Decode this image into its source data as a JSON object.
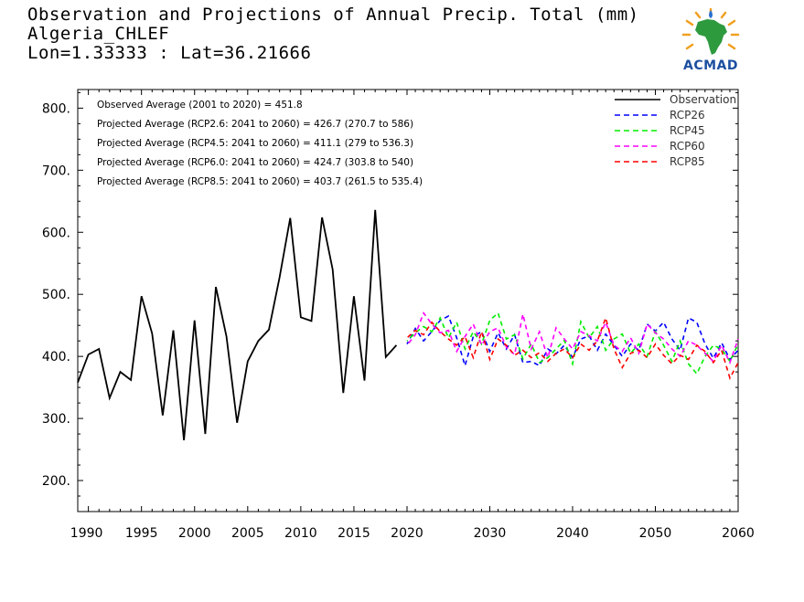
{
  "header": {
    "line1": "Observation and Projections of Annual Precip. Total (mm)",
    "line2": "Algeria_CHLEF",
    "line3": "Lon=1.33333 : Lat=36.21666"
  },
  "logo": {
    "text": "ACMAD",
    "colors": {
      "africa": "#2e9a3e",
      "rays": "#f0a020",
      "text": "#1c4fa0",
      "drop": "#2a6fd0"
    }
  },
  "annotations": [
    "Observed Average (2001 to 2020) = 451.8",
    "Projected Average (RCP2.6: 2041 to 2060) = 426.7 (270.7 to 586)",
    "Projected Average (RCP4.5: 2041 to 2060) = 411.1 (279 to 536.3)",
    "Projected Average (RCP6.0: 2041 to 2060) = 424.7 (303.8 to 540)",
    "Projected Average (RCP8.5: 2041 to 2060) = 403.7 (261.5 to 535.4)"
  ],
  "chart_data": {
    "type": "line",
    "title": "Observation and Projections of Annual Precip. Total (mm)",
    "xlim": [
      1990,
      2060
    ],
    "ylim": [
      150,
      830
    ],
    "x_tick_labels": [
      "1990",
      "1995",
      "2000",
      "2005",
      "2010",
      "2015",
      "2020",
      "2030",
      "2040",
      "2050",
      "2060"
    ],
    "y_tick_labels": [
      "200.",
      "300.",
      "400.",
      "500.",
      "600.",
      "700.",
      "800."
    ],
    "legend_position": "top-right",
    "series": [
      {
        "name": "Observation",
        "color": "#000000",
        "style": "solid",
        "x": [
          1989,
          1990,
          1991,
          1992,
          1993,
          1994,
          1995,
          1996,
          1997,
          1998,
          1999,
          2000,
          2001,
          2002,
          2003,
          2004,
          2005,
          2006,
          2007,
          2008,
          2009,
          2010,
          2011,
          2012,
          2013,
          2014,
          2015,
          2016,
          2017,
          2018,
          2019
        ],
        "values": [
          358,
          403,
          412,
          333,
          375,
          362,
          497,
          437,
          305,
          442,
          265,
          458,
          275,
          512,
          432,
          293,
          392,
          425,
          443,
          527,
          623,
          463,
          457,
          624,
          540,
          341,
          497,
          361,
          636,
          399,
          418
        ]
      },
      {
        "name": "RCP26",
        "color": "#0000ff",
        "style": "dashed",
        "x": [
          2020,
          2021,
          2022,
          2023,
          2024,
          2025,
          2026,
          2027,
          2028,
          2029,
          2030,
          2031,
          2032,
          2033,
          2034,
          2035,
          2036,
          2037,
          2038,
          2039,
          2040,
          2041,
          2042,
          2043,
          2044,
          2045,
          2046,
          2047,
          2048,
          2049,
          2050,
          2051,
          2052,
          2053,
          2054,
          2055,
          2056,
          2057,
          2058,
          2059,
          2060
        ],
        "values": [
          420,
          445,
          425,
          440,
          458,
          465,
          430,
          385,
          432,
          440,
          408,
          438,
          412,
          435,
          390,
          392,
          385,
          412,
          404,
          418,
          398,
          428,
          433,
          410,
          436,
          418,
          400,
          420,
          410,
          452,
          441,
          455,
          428,
          410,
          462,
          455,
          420,
          397,
          422,
          395,
          410
        ]
      },
      {
        "name": "RCP45",
        "color": "#00ee00",
        "style": "dashed",
        "x": [
          2020,
          2021,
          2022,
          2023,
          2024,
          2025,
          2026,
          2027,
          2028,
          2029,
          2030,
          2031,
          2032,
          2033,
          2034,
          2035,
          2036,
          2037,
          2038,
          2039,
          2040,
          2041,
          2042,
          2043,
          2044,
          2045,
          2046,
          2047,
          2048,
          2049,
          2050,
          2051,
          2052,
          2053,
          2054,
          2055,
          2056,
          2057,
          2058,
          2059,
          2060
        ],
        "values": [
          425,
          438,
          448,
          440,
          462,
          430,
          455,
          412,
          440,
          420,
          458,
          470,
          428,
          435,
          396,
          420,
          390,
          398,
          412,
          426,
          388,
          456,
          430,
          448,
          410,
          428,
          436,
          405,
          420,
          400,
          440,
          418,
          392,
          425,
          388,
          372,
          400,
          418,
          412,
          392,
          420
        ]
      },
      {
        "name": "RCP60",
        "color": "#ff00ff",
        "style": "dashed",
        "x": [
          2020,
          2021,
          2022,
          2023,
          2024,
          2025,
          2026,
          2027,
          2028,
          2029,
          2030,
          2031,
          2032,
          2033,
          2034,
          2035,
          2036,
          2037,
          2038,
          2039,
          2040,
          2041,
          2042,
          2043,
          2044,
          2045,
          2046,
          2047,
          2048,
          2049,
          2050,
          2051,
          2052,
          2053,
          2054,
          2055,
          2056,
          2057,
          2058,
          2059,
          2060
        ],
        "values": [
          418,
          435,
          470,
          452,
          438,
          442,
          408,
          432,
          452,
          418,
          440,
          446,
          415,
          403,
          468,
          412,
          440,
          398,
          446,
          428,
          412,
          440,
          433,
          425,
          455,
          418,
          408,
          430,
          405,
          452,
          438,
          428,
          412,
          400,
          425,
          418,
          405,
          392,
          418,
          390,
          428
        ]
      },
      {
        "name": "RCP85",
        "color": "#ff0000",
        "style": "dashed",
        "x": [
          2020,
          2021,
          2022,
          2023,
          2024,
          2025,
          2026,
          2027,
          2028,
          2029,
          2030,
          2031,
          2032,
          2033,
          2034,
          2035,
          2036,
          2037,
          2038,
          2039,
          2040,
          2041,
          2042,
          2043,
          2044,
          2045,
          2046,
          2047,
          2048,
          2049,
          2050,
          2051,
          2052,
          2053,
          2054,
          2055,
          2056,
          2057,
          2058,
          2059,
          2060
        ],
        "values": [
          430,
          442,
          435,
          455,
          440,
          428,
          418,
          432,
          398,
          440,
          395,
          428,
          418,
          402,
          410,
          398,
          406,
          392,
          405,
          412,
          398,
          420,
          410,
          425,
          462,
          412,
          382,
          405,
          410,
          398,
          420,
          402,
          388,
          402,
          395,
          418,
          408,
          390,
          410,
          365,
          390
        ]
      }
    ]
  }
}
